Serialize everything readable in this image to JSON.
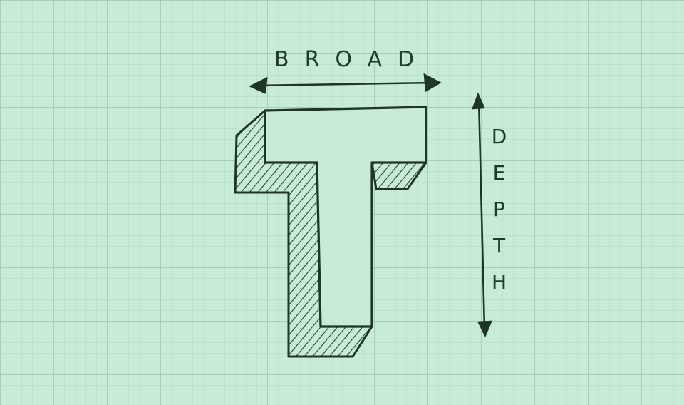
{
  "labels": {
    "horizontal": "BROAD",
    "vertical": "DEPTH"
  }
}
